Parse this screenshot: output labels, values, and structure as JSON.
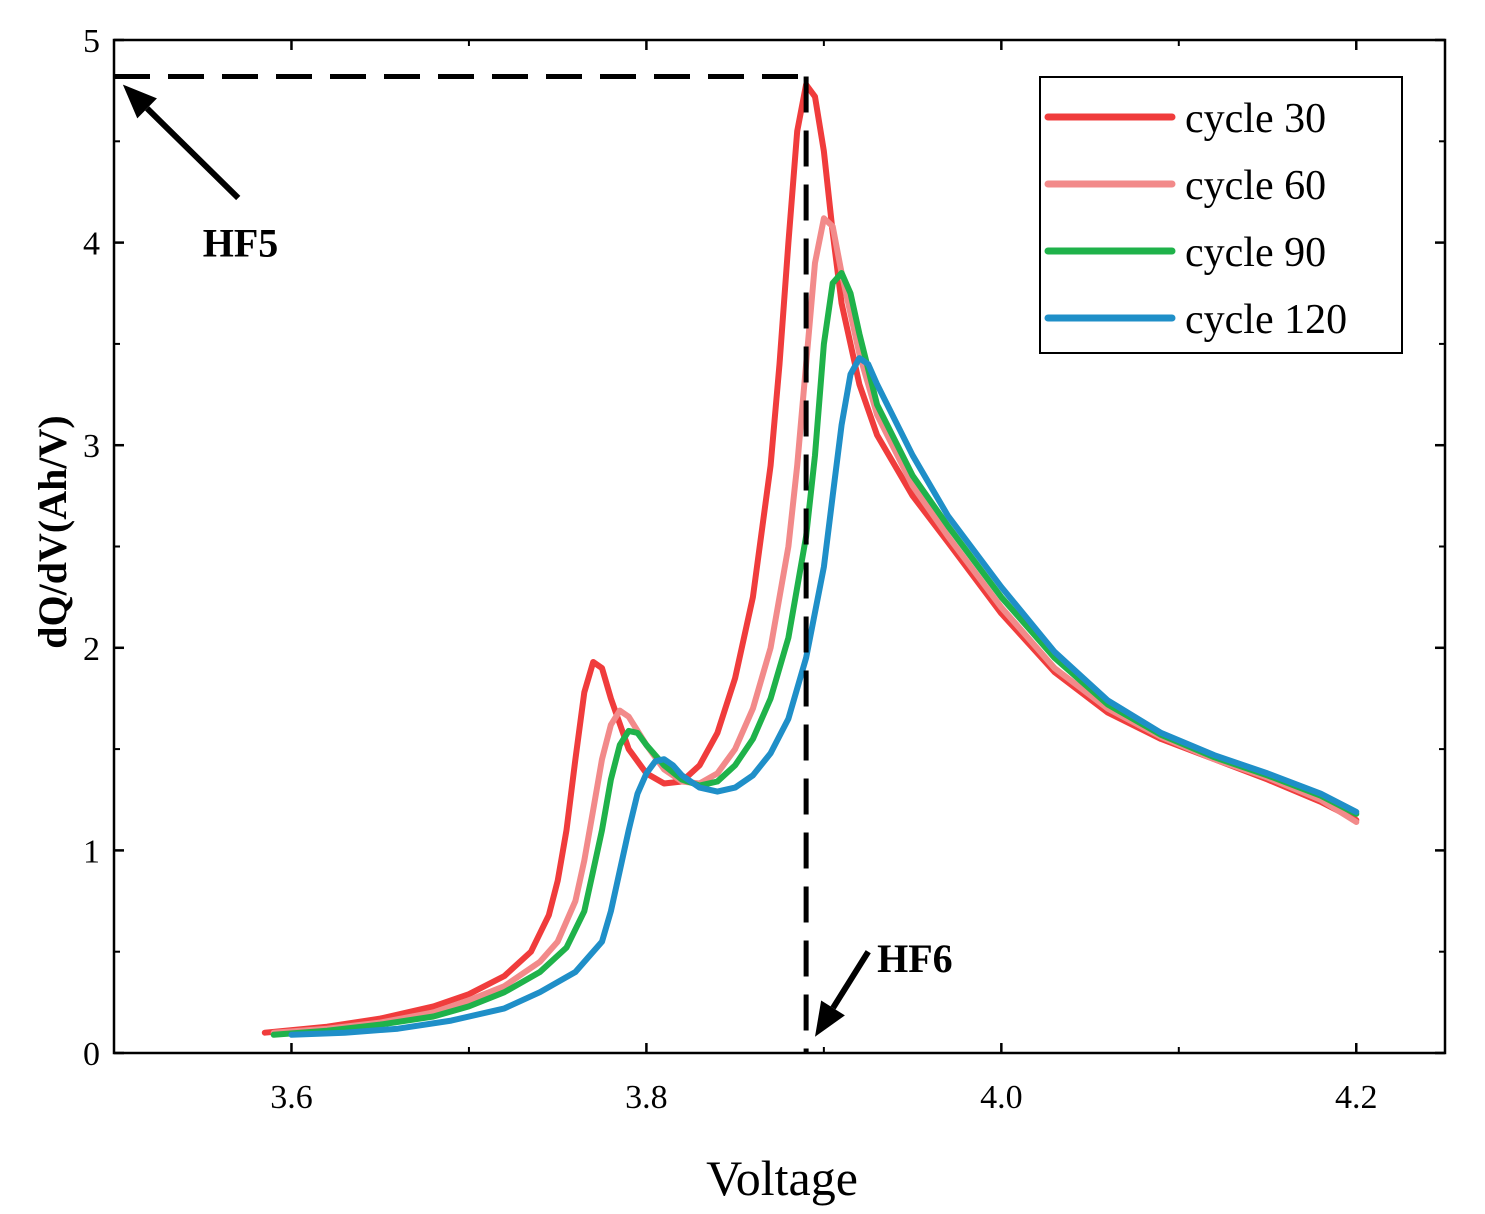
{
  "chart_data": {
    "type": "line",
    "title": "",
    "xlabel": "Voltage",
    "ylabel": "dQ/dV(Ah/V)",
    "xlim": [
      3.5,
      4.25
    ],
    "ylim": [
      0,
      5
    ],
    "x_ticks": [
      3.6,
      3.8,
      4.0,
      4.2
    ],
    "x_tick_labels": [
      "3.6",
      "3.8",
      "4.0",
      "4.2"
    ],
    "y_ticks": [
      0,
      1,
      2,
      3,
      4,
      5
    ],
    "y_tick_labels": [
      "0",
      "1",
      "2",
      "3",
      "4",
      "5"
    ],
    "legend_position": "top-right",
    "series": [
      {
        "name": "cycle 30",
        "color": "#f03c3c",
        "points": [
          [
            3.585,
            0.1
          ],
          [
            3.62,
            0.13
          ],
          [
            3.65,
            0.17
          ],
          [
            3.68,
            0.23
          ],
          [
            3.7,
            0.29
          ],
          [
            3.72,
            0.38
          ],
          [
            3.735,
            0.5
          ],
          [
            3.745,
            0.68
          ],
          [
            3.75,
            0.85
          ],
          [
            3.755,
            1.1
          ],
          [
            3.76,
            1.45
          ],
          [
            3.765,
            1.78
          ],
          [
            3.77,
            1.93
          ],
          [
            3.775,
            1.9
          ],
          [
            3.78,
            1.75
          ],
          [
            3.79,
            1.5
          ],
          [
            3.8,
            1.38
          ],
          [
            3.81,
            1.33
          ],
          [
            3.82,
            1.34
          ],
          [
            3.83,
            1.42
          ],
          [
            3.84,
            1.58
          ],
          [
            3.85,
            1.85
          ],
          [
            3.86,
            2.25
          ],
          [
            3.87,
            2.9
          ],
          [
            3.875,
            3.4
          ],
          [
            3.88,
            4.0
          ],
          [
            3.885,
            4.55
          ],
          [
            3.89,
            4.78
          ],
          [
            3.895,
            4.72
          ],
          [
            3.9,
            4.45
          ],
          [
            3.905,
            4.05
          ],
          [
            3.91,
            3.7
          ],
          [
            3.92,
            3.3
          ],
          [
            3.93,
            3.05
          ],
          [
            3.95,
            2.75
          ],
          [
            3.97,
            2.52
          ],
          [
            4.0,
            2.17
          ],
          [
            4.03,
            1.88
          ],
          [
            4.06,
            1.68
          ],
          [
            4.09,
            1.55
          ],
          [
            4.12,
            1.45
          ],
          [
            4.15,
            1.35
          ],
          [
            4.18,
            1.24
          ],
          [
            4.2,
            1.15
          ]
        ]
      },
      {
        "name": "cycle 60",
        "color": "#f28a8a",
        "points": [
          [
            3.59,
            0.1
          ],
          [
            3.62,
            0.12
          ],
          [
            3.65,
            0.15
          ],
          [
            3.68,
            0.2
          ],
          [
            3.7,
            0.26
          ],
          [
            3.72,
            0.33
          ],
          [
            3.74,
            0.45
          ],
          [
            3.75,
            0.55
          ],
          [
            3.76,
            0.75
          ],
          [
            3.765,
            0.95
          ],
          [
            3.77,
            1.2
          ],
          [
            3.775,
            1.45
          ],
          [
            3.78,
            1.62
          ],
          [
            3.785,
            1.69
          ],
          [
            3.79,
            1.66
          ],
          [
            3.8,
            1.52
          ],
          [
            3.81,
            1.4
          ],
          [
            3.82,
            1.34
          ],
          [
            3.83,
            1.33
          ],
          [
            3.84,
            1.38
          ],
          [
            3.85,
            1.5
          ],
          [
            3.86,
            1.7
          ],
          [
            3.87,
            2.0
          ],
          [
            3.88,
            2.5
          ],
          [
            3.885,
            2.9
          ],
          [
            3.89,
            3.4
          ],
          [
            3.895,
            3.9
          ],
          [
            3.9,
            4.12
          ],
          [
            3.905,
            4.08
          ],
          [
            3.91,
            3.85
          ],
          [
            3.92,
            3.45
          ],
          [
            3.93,
            3.15
          ],
          [
            3.95,
            2.8
          ],
          [
            3.97,
            2.55
          ],
          [
            4.0,
            2.2
          ],
          [
            4.03,
            1.9
          ],
          [
            4.06,
            1.7
          ],
          [
            4.09,
            1.56
          ],
          [
            4.12,
            1.45
          ],
          [
            4.15,
            1.36
          ],
          [
            4.18,
            1.25
          ],
          [
            4.2,
            1.14
          ]
        ]
      },
      {
        "name": "cycle 90",
        "color": "#1fb24a",
        "points": [
          [
            3.59,
            0.09
          ],
          [
            3.62,
            0.11
          ],
          [
            3.65,
            0.14
          ],
          [
            3.68,
            0.18
          ],
          [
            3.7,
            0.23
          ],
          [
            3.72,
            0.3
          ],
          [
            3.74,
            0.4
          ],
          [
            3.755,
            0.52
          ],
          [
            3.765,
            0.7
          ],
          [
            3.77,
            0.9
          ],
          [
            3.775,
            1.1
          ],
          [
            3.78,
            1.35
          ],
          [
            3.785,
            1.52
          ],
          [
            3.79,
            1.59
          ],
          [
            3.795,
            1.58
          ],
          [
            3.8,
            1.52
          ],
          [
            3.81,
            1.42
          ],
          [
            3.82,
            1.35
          ],
          [
            3.83,
            1.32
          ],
          [
            3.84,
            1.34
          ],
          [
            3.85,
            1.42
          ],
          [
            3.86,
            1.55
          ],
          [
            3.87,
            1.75
          ],
          [
            3.88,
            2.05
          ],
          [
            3.89,
            2.55
          ],
          [
            3.895,
            2.95
          ],
          [
            3.9,
            3.5
          ],
          [
            3.905,
            3.8
          ],
          [
            3.91,
            3.85
          ],
          [
            3.915,
            3.75
          ],
          [
            3.92,
            3.55
          ],
          [
            3.93,
            3.2
          ],
          [
            3.95,
            2.85
          ],
          [
            3.97,
            2.6
          ],
          [
            4.0,
            2.25
          ],
          [
            4.03,
            1.95
          ],
          [
            4.06,
            1.72
          ],
          [
            4.09,
            1.57
          ],
          [
            4.12,
            1.46
          ],
          [
            4.15,
            1.37
          ],
          [
            4.18,
            1.27
          ],
          [
            4.2,
            1.18
          ]
        ]
      },
      {
        "name": "cycle 120",
        "color": "#1f8fc8",
        "points": [
          [
            3.6,
            0.09
          ],
          [
            3.63,
            0.1
          ],
          [
            3.66,
            0.12
          ],
          [
            3.69,
            0.16
          ],
          [
            3.72,
            0.22
          ],
          [
            3.74,
            0.3
          ],
          [
            3.76,
            0.4
          ],
          [
            3.775,
            0.55
          ],
          [
            3.78,
            0.7
          ],
          [
            3.785,
            0.9
          ],
          [
            3.79,
            1.1
          ],
          [
            3.795,
            1.28
          ],
          [
            3.8,
            1.38
          ],
          [
            3.805,
            1.44
          ],
          [
            3.81,
            1.45
          ],
          [
            3.815,
            1.42
          ],
          [
            3.82,
            1.37
          ],
          [
            3.83,
            1.31
          ],
          [
            3.84,
            1.29
          ],
          [
            3.85,
            1.31
          ],
          [
            3.86,
            1.37
          ],
          [
            3.87,
            1.48
          ],
          [
            3.88,
            1.65
          ],
          [
            3.89,
            1.95
          ],
          [
            3.9,
            2.4
          ],
          [
            3.905,
            2.75
          ],
          [
            3.91,
            3.1
          ],
          [
            3.915,
            3.35
          ],
          [
            3.92,
            3.43
          ],
          [
            3.925,
            3.4
          ],
          [
            3.93,
            3.3
          ],
          [
            3.95,
            2.95
          ],
          [
            3.97,
            2.65
          ],
          [
            4.0,
            2.3
          ],
          [
            4.03,
            1.98
          ],
          [
            4.06,
            1.74
          ],
          [
            4.09,
            1.58
          ],
          [
            4.12,
            1.47
          ],
          [
            4.15,
            1.38
          ],
          [
            4.18,
            1.28
          ],
          [
            4.2,
            1.19
          ]
        ]
      }
    ],
    "reference_lines": {
      "horizontal": {
        "y": 4.82,
        "x_from": 3.5,
        "x_to": 3.89
      },
      "vertical": {
        "x": 3.89,
        "y_from": 0,
        "y_to": 4.82
      }
    },
    "annotations": [
      {
        "id": "hf5",
        "text": "HF5",
        "label_x": 3.55,
        "label_y": 4.0,
        "arrow_from": [
          3.57,
          4.22
        ],
        "arrow_to": [
          3.505,
          4.78
        ]
      },
      {
        "id": "hf6",
        "text": "HF6",
        "label_x": 3.93,
        "label_y": 0.47,
        "arrow_from": [
          3.925,
          0.5
        ],
        "arrow_to": [
          3.895,
          0.08
        ]
      }
    ]
  }
}
